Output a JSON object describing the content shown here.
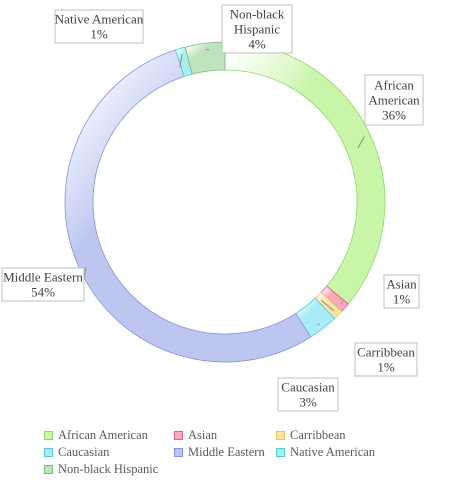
{
  "chart_data": {
    "type": "pie",
    "variant": "doughnut",
    "title": "",
    "categories": [
      "African American",
      "Asian",
      "Carribbean",
      "Caucasian",
      "Middle Eastern",
      "Native American",
      "Non-black Hispanic"
    ],
    "values": [
      36,
      1,
      1,
      3,
      54,
      1,
      4
    ],
    "labels": [
      {
        "name": "African American",
        "lines": [
          "African",
          "American",
          "36%"
        ]
      },
      {
        "name": "Asian",
        "lines": [
          "Asian",
          "1%"
        ]
      },
      {
        "name": "Carribbean",
        "lines": [
          "Carribbean",
          "1%"
        ]
      },
      {
        "name": "Caucasian",
        "lines": [
          "Caucasian",
          "3%"
        ]
      },
      {
        "name": "Middle Eastern",
        "lines": [
          "Middle Eastern",
          "54%"
        ]
      },
      {
        "name": "Native American",
        "lines": [
          "Native American",
          "1%"
        ]
      },
      {
        "name": "Non-black Hispanic",
        "lines": [
          "Non-black",
          "Hispanic",
          "4%"
        ]
      }
    ],
    "colors": [
      "#c8f5a8",
      "#f7a8bb",
      "#fbe3a6",
      "#a9ecf7",
      "#bcc6f1",
      "#a9efef",
      "#bfe3bd"
    ],
    "strokes": [
      "#8fd36a",
      "#e0607f",
      "#e8c45c",
      "#57c6de",
      "#8593d8",
      "#56cccc",
      "#7fba7c"
    ],
    "legend": {
      "position": "bottom",
      "items": [
        "African American",
        "Asian",
        "Carribbean",
        "Caucasian",
        "Middle Eastern",
        "Native American",
        "Non-black Hispanic"
      ]
    }
  }
}
